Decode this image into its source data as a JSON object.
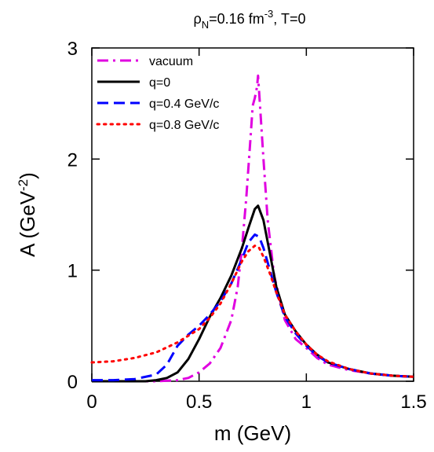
{
  "chart_data": {
    "type": "line",
    "title": {
      "base": "ρ",
      "sub": "N",
      "mid": "=0.16 fm",
      "sup": "-3",
      "tail": ", T=0"
    },
    "xlabel": "m (GeV)",
    "ylabel": {
      "base": "A (GeV",
      "sup": "-2",
      "tail": ")"
    },
    "xlim": [
      0,
      1.5
    ],
    "ylim": [
      0,
      3
    ],
    "xticks": [
      0,
      0.5,
      1,
      1.5
    ],
    "xtick_labels": [
      "0",
      "0.5",
      "1",
      "1.5"
    ],
    "yticks": [
      0,
      1,
      2,
      3
    ],
    "ytick_labels": [
      "0",
      "1",
      "2",
      "3"
    ],
    "grid": false,
    "legend_position": "top-left",
    "series": [
      {
        "name": "vacuum",
        "color": "#e000e0",
        "dash": "dashdot",
        "points": [
          [
            0,
            0
          ],
          [
            0.2,
            0
          ],
          [
            0.3,
            0
          ],
          [
            0.4,
            0.01
          ],
          [
            0.45,
            0.03
          ],
          [
            0.5,
            0.08
          ],
          [
            0.55,
            0.16
          ],
          [
            0.6,
            0.3
          ],
          [
            0.65,
            0.55
          ],
          [
            0.68,
            0.85
          ],
          [
            0.7,
            1.2
          ],
          [
            0.72,
            1.65
          ],
          [
            0.74,
            2.2
          ],
          [
            0.75,
            2.48
          ],
          [
            0.76,
            2.55
          ],
          [
            0.77,
            2.65
          ],
          [
            0.775,
            2.75
          ],
          [
            0.78,
            2.6
          ],
          [
            0.8,
            2.0
          ],
          [
            0.82,
            1.45
          ],
          [
            0.85,
            0.95
          ],
          [
            0.9,
            0.55
          ],
          [
            0.95,
            0.38
          ],
          [
            1.0,
            0.3
          ],
          [
            1.05,
            0.21
          ],
          [
            1.1,
            0.15
          ],
          [
            1.2,
            0.1
          ],
          [
            1.3,
            0.07
          ],
          [
            1.4,
            0.05
          ],
          [
            1.5,
            0.04
          ]
        ]
      },
      {
        "name": "q=0",
        "color": "#000000",
        "dash": "solid",
        "points": [
          [
            0,
            0
          ],
          [
            0.15,
            0
          ],
          [
            0.25,
            0
          ],
          [
            0.3,
            0.01
          ],
          [
            0.35,
            0.03
          ],
          [
            0.4,
            0.08
          ],
          [
            0.45,
            0.2
          ],
          [
            0.5,
            0.38
          ],
          [
            0.55,
            0.58
          ],
          [
            0.6,
            0.75
          ],
          [
            0.65,
            0.95
          ],
          [
            0.7,
            1.2
          ],
          [
            0.73,
            1.38
          ],
          [
            0.76,
            1.55
          ],
          [
            0.775,
            1.58
          ],
          [
            0.8,
            1.45
          ],
          [
            0.83,
            1.15
          ],
          [
            0.86,
            0.85
          ],
          [
            0.9,
            0.6
          ],
          [
            0.95,
            0.45
          ],
          [
            1.0,
            0.33
          ],
          [
            1.05,
            0.24
          ],
          [
            1.1,
            0.17
          ],
          [
            1.2,
            0.11
          ],
          [
            1.3,
            0.07
          ],
          [
            1.4,
            0.05
          ],
          [
            1.5,
            0.04
          ]
        ]
      },
      {
        "name": "q=0.4 GeV/c",
        "color": "#0000ff",
        "dash": "dashed",
        "points": [
          [
            0,
            0.01
          ],
          [
            0.1,
            0.01
          ],
          [
            0.2,
            0.02
          ],
          [
            0.3,
            0.06
          ],
          [
            0.35,
            0.15
          ],
          [
            0.4,
            0.32
          ],
          [
            0.45,
            0.42
          ],
          [
            0.5,
            0.5
          ],
          [
            0.55,
            0.6
          ],
          [
            0.6,
            0.72
          ],
          [
            0.65,
            0.88
          ],
          [
            0.7,
            1.1
          ],
          [
            0.73,
            1.25
          ],
          [
            0.76,
            1.32
          ],
          [
            0.78,
            1.3
          ],
          [
            0.8,
            1.2
          ],
          [
            0.83,
            1.0
          ],
          [
            0.86,
            0.8
          ],
          [
            0.9,
            0.58
          ],
          [
            0.95,
            0.43
          ],
          [
            1.0,
            0.32
          ],
          [
            1.05,
            0.23
          ],
          [
            1.1,
            0.17
          ],
          [
            1.2,
            0.11
          ],
          [
            1.3,
            0.07
          ],
          [
            1.4,
            0.05
          ],
          [
            1.5,
            0.04
          ]
        ]
      },
      {
        "name": "q=0.8 GeV/c",
        "color": "#ff0000",
        "dash": "dotted",
        "points": [
          [
            0,
            0.17
          ],
          [
            0.1,
            0.18
          ],
          [
            0.2,
            0.21
          ],
          [
            0.3,
            0.26
          ],
          [
            0.4,
            0.35
          ],
          [
            0.5,
            0.47
          ],
          [
            0.55,
            0.57
          ],
          [
            0.6,
            0.7
          ],
          [
            0.65,
            0.88
          ],
          [
            0.7,
            1.08
          ],
          [
            0.73,
            1.17
          ],
          [
            0.76,
            1.22
          ],
          [
            0.78,
            1.2
          ],
          [
            0.8,
            1.12
          ],
          [
            0.83,
            0.97
          ],
          [
            0.86,
            0.8
          ],
          [
            0.9,
            0.6
          ],
          [
            0.95,
            0.45
          ],
          [
            1.0,
            0.33
          ],
          [
            1.05,
            0.24
          ],
          [
            1.1,
            0.18
          ],
          [
            1.2,
            0.11
          ],
          [
            1.3,
            0.07
          ],
          [
            1.4,
            0.05
          ],
          [
            1.5,
            0.04
          ]
        ]
      }
    ]
  }
}
